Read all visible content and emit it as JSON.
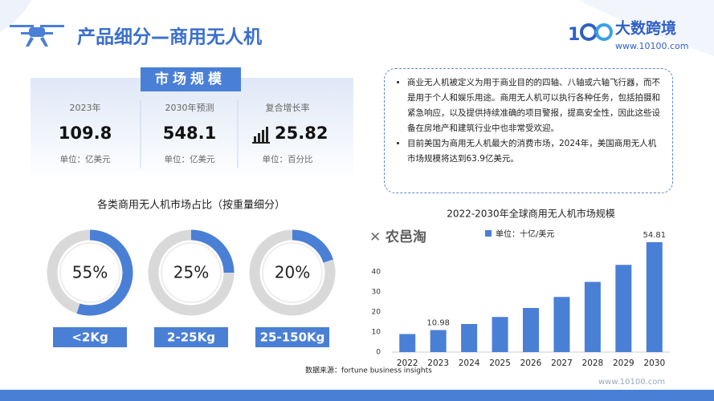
{
  "header": {
    "title": "产品细分—商用无人机",
    "logo": "大数跨境",
    "logo_url": "www.10100.com"
  },
  "market": {
    "title": "市场规模",
    "stats": [
      {
        "label": "2023年",
        "value": 109.8,
        "unit": "单位：亿美元"
      },
      {
        "label": "2030年预测",
        "value": 548.1,
        "unit": "单位：亿美元"
      },
      {
        "label": "复合增长率",
        "value": 25.82,
        "unit": "单位：百分比"
      }
    ]
  },
  "description": {
    "bullets": [
      "商业无人机被定义为用于商业目的的四轴、八轴或六轴飞行器，而不是用于个人和娱乐用途。商用无人机可以执行各种任务，包括拍摄和紧急响应，以及提供持续准确的项目警报，提高安全性，因此这些设备在房地产和建筑行业中也非常受欢迎。",
      "目前美国为商用无人机最大的消费市场，2024年，美国商用无人机市场规模将达到63.9亿美元。"
    ]
  },
  "watermark": "农邑淘",
  "footer": {
    "source": "数据来源：fortune business insights",
    "url": "www.10100.com"
  },
  "chart_data": [
    {
      "type": "donut",
      "title": "各类商用无人机市场占比（按重量细分）",
      "categories": [
        "<2Kg",
        "2-25Kg",
        "25-150Kg"
      ],
      "values": [
        55,
        25,
        20
      ],
      "value_labels": [
        "55%",
        "25%",
        "20%"
      ],
      "color": "#4a7fd6",
      "track_color": "#d9d9d9"
    },
    {
      "type": "bar",
      "title": "2022-2030年全球商用无人机市场规模",
      "categories": [
        "2022",
        "2023",
        "2024",
        "2025",
        "2026",
        "2027",
        "2028",
        "2029",
        "2030"
      ],
      "series": [
        {
          "name": "单位：十亿/美元",
          "color": "#4a7fd6",
          "values": [
            9,
            10.98,
            14,
            17.5,
            22,
            27.5,
            35,
            43.5,
            54.81
          ],
          "value_labels": [
            null,
            "10.98",
            null,
            null,
            null,
            null,
            null,
            null,
            "54.81"
          ]
        }
      ],
      "ylim": [
        0,
        60
      ],
      "yticks": [
        0,
        10,
        20,
        30,
        40
      ]
    }
  ]
}
